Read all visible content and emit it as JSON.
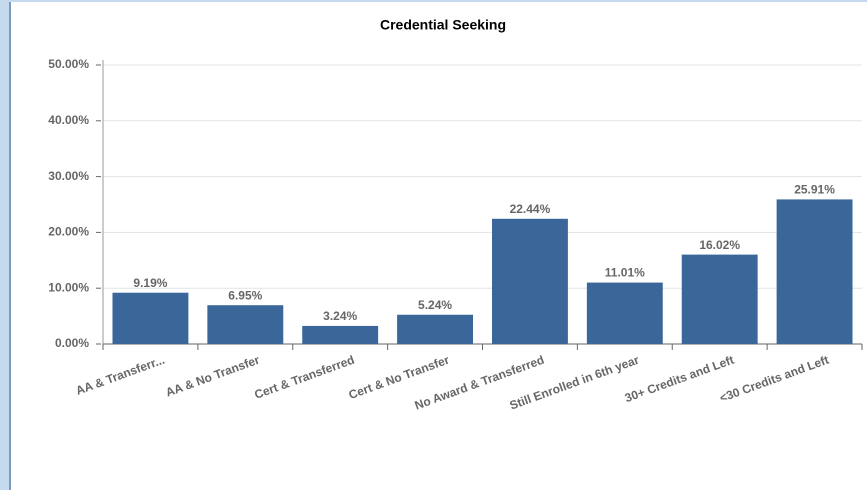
{
  "chart_data": {
    "type": "bar",
    "title": "Credential Seeking",
    "categories": [
      "AA & Transferr...",
      "AA & No Transfer",
      "Cert & Transferred",
      "Cert & No Transfer",
      "No Award & Transferred",
      "Still Enrolled in 6th year",
      "30+ Credits and Left",
      "<30 Credits and Left"
    ],
    "values": [
      9.19,
      6.95,
      3.24,
      5.24,
      22.44,
      11.01,
      16.02,
      25.91
    ],
    "value_labels": [
      "9.19%",
      "6.95%",
      "3.24%",
      "5.24%",
      "22.44%",
      "11.01%",
      "16.02%",
      "25.91%"
    ],
    "color": "#3a6699",
    "ylim": [
      0,
      50
    ],
    "yticks": [
      {
        "value": 0,
        "label": "0.00%"
      },
      {
        "value": 10,
        "label": "10.00%"
      },
      {
        "value": 20,
        "label": "20.00%"
      },
      {
        "value": 30,
        "label": "30.00%"
      },
      {
        "value": 40,
        "label": "40.00%"
      },
      {
        "value": 50,
        "label": "50.00%"
      }
    ],
    "grid": true
  }
}
